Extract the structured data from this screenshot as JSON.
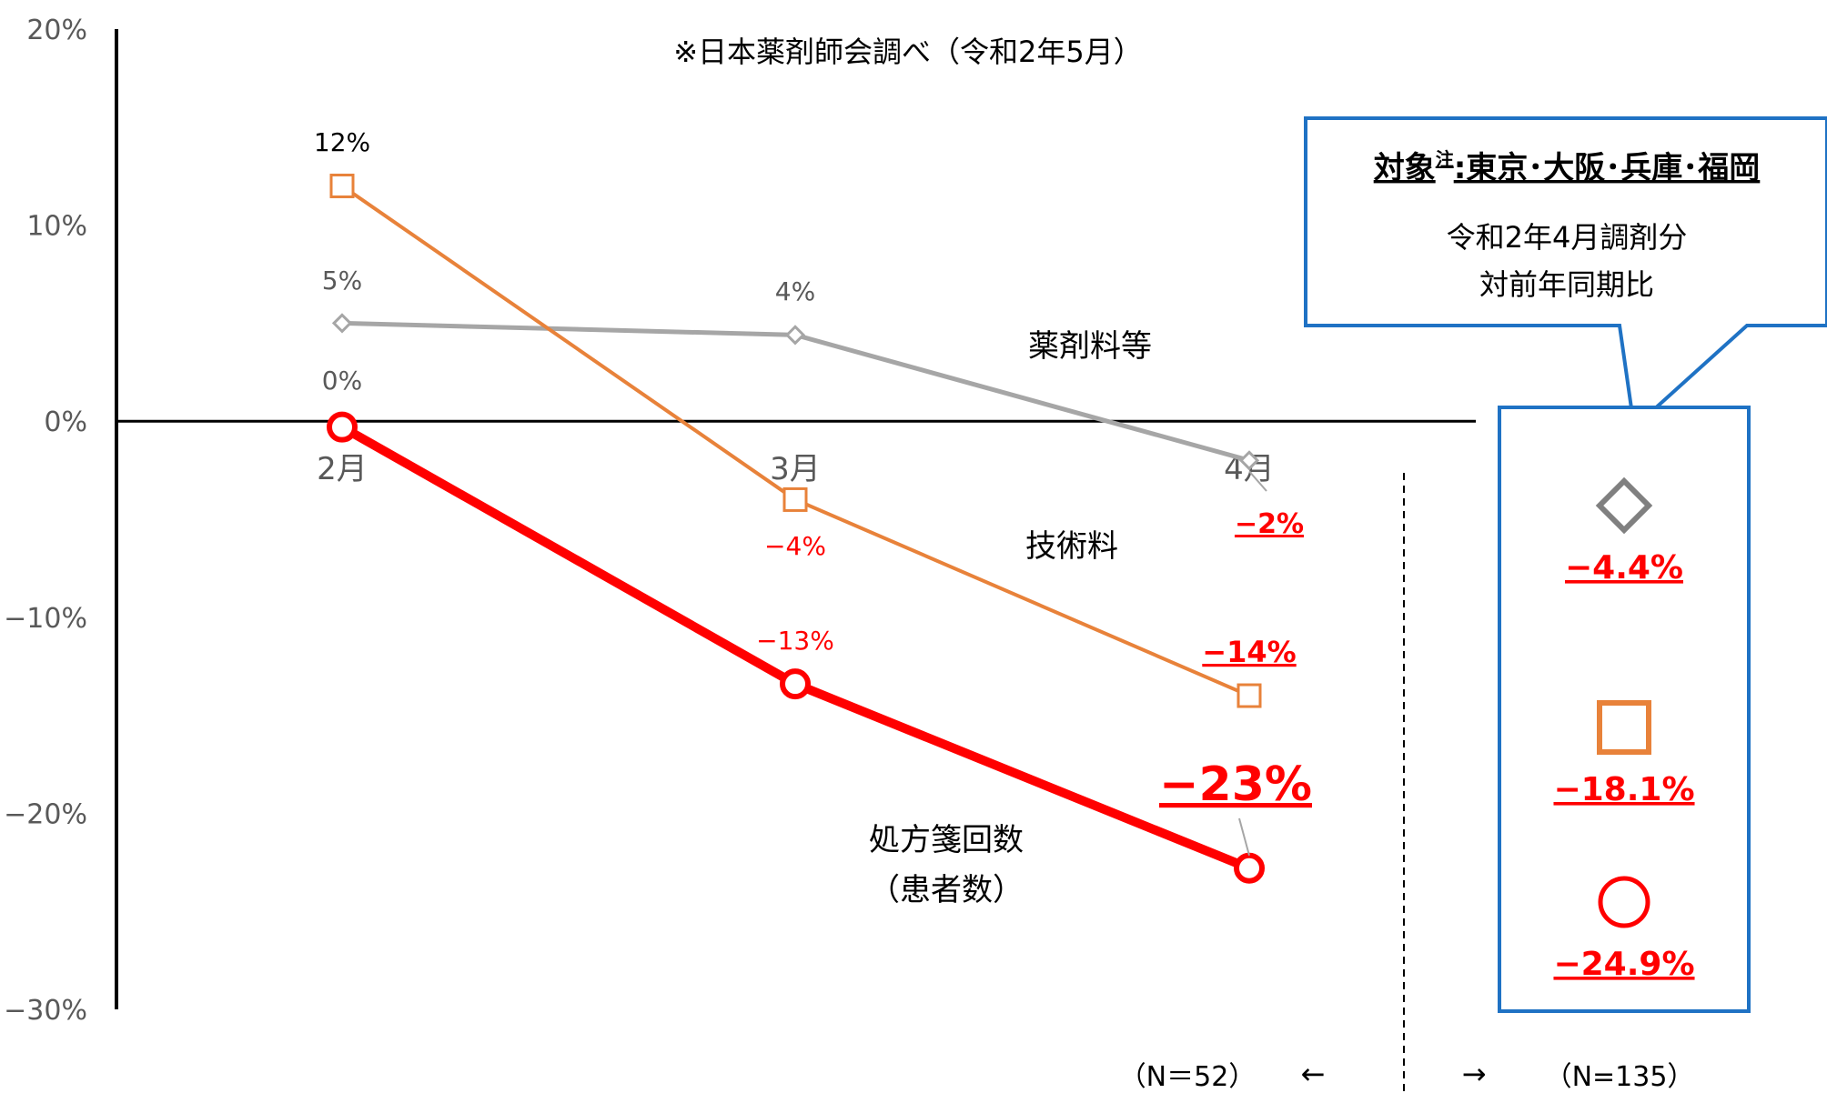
{
  "chart_data": {
    "type": "line",
    "source_note": "※日本薬剤師会調べ（令和2年5月）",
    "categories": [
      "2月",
      "3月",
      "4月"
    ],
    "ylim": [
      -30,
      20
    ],
    "yticks": [
      20,
      10,
      0,
      -10,
      -20,
      -30
    ],
    "ytick_labels": [
      "20%",
      "10%",
      "0%",
      "−10%",
      "−20%",
      "−30%"
    ],
    "series": [
      {
        "name": "薬剤料等",
        "marker": "diamond",
        "color": "#a6a6a6",
        "values": [
          5,
          4.4,
          -2
        ],
        "labels": [
          "5%",
          "4%",
          "−2%"
        ]
      },
      {
        "name": "技術料",
        "marker": "square",
        "color": "#e8823a",
        "values": [
          12,
          -4,
          -14
        ],
        "labels": [
          "12%",
          "−4%",
          "−14%"
        ]
      },
      {
        "name": "処方箋回数",
        "name_sub": "（患者数）",
        "marker": "circle",
        "color": "#ff0000",
        "values": [
          -0.3,
          -13.4,
          -22.8
        ],
        "labels": [
          "0%",
          "−13%",
          "−23%"
        ]
      }
    ],
    "callout": {
      "title": "対象",
      "title_sup": "注",
      "title_rest": ":東京･大阪･兵庫･福岡",
      "line1": "令和2年4月調剤分",
      "line2": "対前年同期比",
      "border_color": "#1f72c4",
      "items": [
        {
          "marker": "diamond",
          "color": "#808080",
          "value": "−4.4%"
        },
        {
          "marker": "square",
          "color": "#e8823a",
          "value": "−18.1%"
        },
        {
          "marker": "circle",
          "color": "#ff0000",
          "value": "−24.9%"
        }
      ]
    },
    "n_left": "（N＝52）",
    "n_right": "（N=135）",
    "arrow_left": "←",
    "arrow_right": "→"
  }
}
